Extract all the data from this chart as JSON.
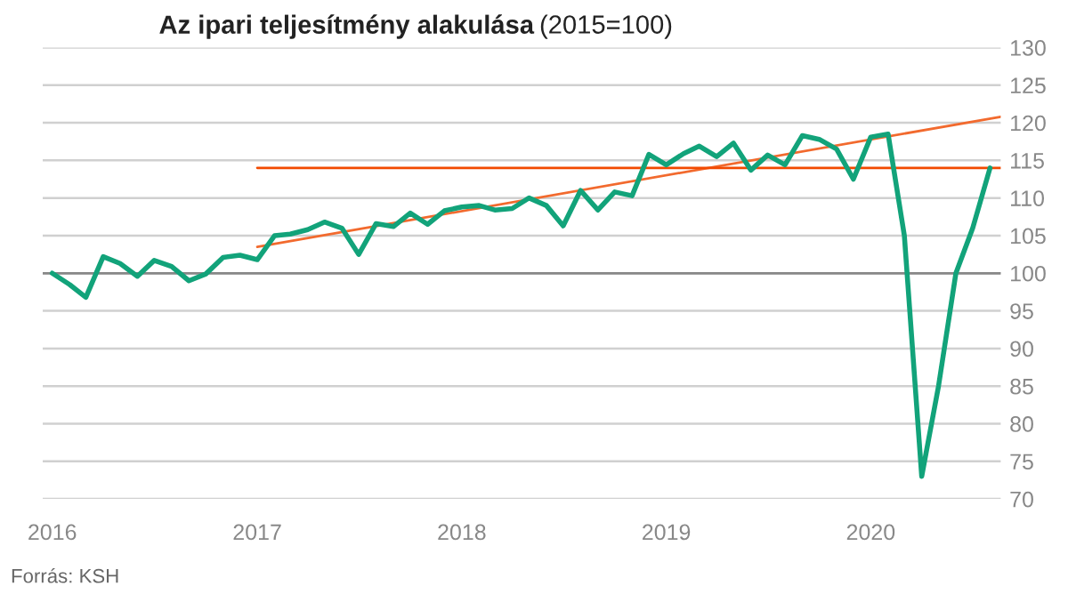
{
  "chart_data": {
    "type": "line",
    "title": "Az ipari teljesítmény alakulása",
    "subtitle": "(2015=100)",
    "x": [
      "2016-01",
      "2016-02",
      "2016-03",
      "2016-04",
      "2016-05",
      "2016-06",
      "2016-07",
      "2016-08",
      "2016-09",
      "2016-10",
      "2016-11",
      "2016-12",
      "2017-01",
      "2017-02",
      "2017-03",
      "2017-04",
      "2017-05",
      "2017-06",
      "2017-07",
      "2017-08",
      "2017-09",
      "2017-10",
      "2017-11",
      "2017-12",
      "2018-01",
      "2018-02",
      "2018-03",
      "2018-04",
      "2018-05",
      "2018-06",
      "2018-07",
      "2018-08",
      "2018-09",
      "2018-10",
      "2018-11",
      "2018-12",
      "2019-01",
      "2019-02",
      "2019-03",
      "2019-04",
      "2019-05",
      "2019-06",
      "2019-07",
      "2019-08",
      "2019-09",
      "2019-10",
      "2019-11",
      "2019-12",
      "2020-01",
      "2020-02",
      "2020-03",
      "2020-04",
      "2020-05",
      "2020-06",
      "2020-07",
      "2020-08"
    ],
    "series": [
      {
        "color": "#12a37a",
        "values": [
          100,
          98.5,
          96.8,
          102.2,
          101.3,
          99.6,
          101.7,
          100.9,
          99,
          99.9,
          102.1,
          102.4,
          101.8,
          105,
          105.2,
          105.8,
          106.8,
          106,
          102.5,
          106.6,
          106.2,
          108,
          106.5,
          108.3,
          108.8,
          109,
          108.4,
          108.6,
          110,
          109,
          106.3,
          111,
          108.4,
          110.8,
          110.3,
          115.8,
          114.4,
          115.9,
          116.9,
          115.5,
          117.3,
          113.7,
          115.7,
          114.4,
          118.3,
          117.8,
          116.5,
          112.5,
          118.1,
          118.5,
          105,
          73,
          85,
          100,
          106,
          114
        ]
      },
      {
        "type": "line",
        "color": "#f26a2e",
        "x": [
          "2017-01",
          "2020-08-20"
        ],
        "values": [
          103.5,
          120.8
        ]
      },
      {
        "type": "line",
        "color": "#f24a00",
        "x": [
          "2017-01",
          "2020-08-20"
        ],
        "values": [
          114,
          114
        ]
      }
    ],
    "xlim": [
      "2015-12-15",
      "2020-08-20"
    ],
    "xticks": [
      {
        "value": "2016-01",
        "label": "2016"
      },
      {
        "value": "2017-01",
        "label": "2017"
      },
      {
        "value": "2018-01",
        "label": "2018"
      },
      {
        "value": "2019-01",
        "label": "2019"
      },
      {
        "value": "2020-01",
        "label": "2020"
      }
    ],
    "ylim": [
      70,
      130
    ],
    "yticks": [
      70,
      75,
      80,
      85,
      90,
      95,
      100,
      105,
      110,
      115,
      120,
      125,
      130
    ],
    "ref_lines": [
      {
        "axis": "y",
        "value": 100,
        "color": "#888888"
      }
    ],
    "grid": "y",
    "legend": false,
    "annotations": [
      "Forrás: KSH"
    ]
  }
}
